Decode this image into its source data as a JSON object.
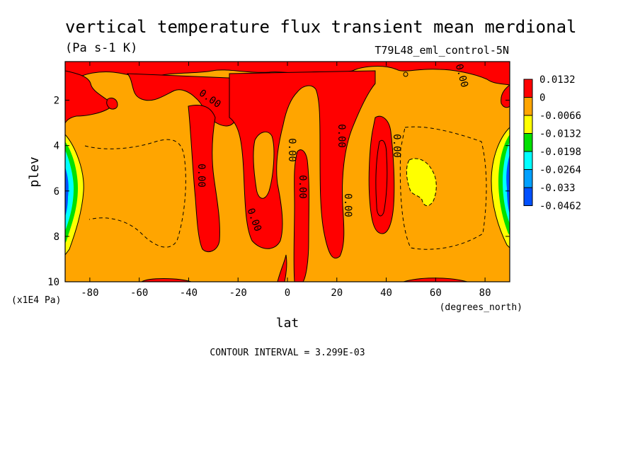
{
  "chart_data": {
    "type": "heatmap",
    "title": "vertical temperature flux transient mean merdional",
    "units": "(Pa s-1 K)",
    "dataset": "T79L48_eml_control-5N",
    "xlabel": "lat",
    "x_units": "(degrees_north)",
    "ylabel": "plev",
    "y_units": "(x1E4 Pa)",
    "xlim": [
      -90,
      90
    ],
    "ylim": [
      10,
      0.3
    ],
    "x_ticks": [
      -80,
      -60,
      -40,
      -20,
      0,
      20,
      40,
      60,
      80
    ],
    "x_tick_labels": [
      "-80",
      "-60",
      "-40",
      "-20",
      "0",
      "20",
      "40",
      "60",
      "80"
    ],
    "y_ticks": [
      2,
      4,
      6,
      8,
      10
    ],
    "y_tick_labels": [
      "2",
      "4",
      "6",
      "8",
      "10"
    ],
    "contour_interval_text": "CONTOUR INTERVAL = 3.299E-03",
    "contour_label": "0.00",
    "colorbar": {
      "labels": [
        "0.0132",
        "0",
        "-0.0066",
        "-0.0132",
        "-0.0198",
        "-0.0264",
        "-0.033",
        "-0.0462"
      ],
      "colors": [
        "#ff0000",
        "#ffa500",
        "#ffff00",
        "#00e000",
        "#00ffff",
        "#00a0ff",
        "#0050ff"
      ]
    },
    "regions": {
      "background_color": "#ffa500",
      "positive_color": "#ff0000",
      "yellow_color": "#ffff00",
      "green_color": "#00e000",
      "cyan_color": "#00ffff",
      "blue_color": "#0050ff"
    }
  }
}
